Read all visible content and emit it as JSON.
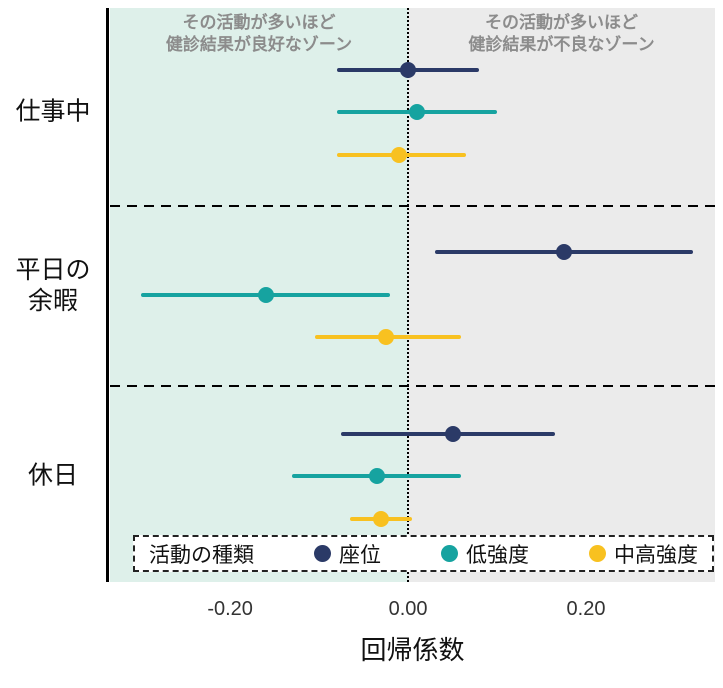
{
  "colors": {
    "sedentary": "#2b3a67",
    "light_intensity": "#16a3a0",
    "moderate_vigorous": "#f8c120",
    "zone_good_bg": "#def0ea",
    "zone_bad_bg": "#ebebeb",
    "zone_label_text": "#8c8c8c"
  },
  "zones": {
    "good_label": "その活動が多いほど\n健診結果が良好なゾーン",
    "bad_label": "その活動が多いほど\n健診結果が不良なゾーン"
  },
  "legend": {
    "title": "活動の種類",
    "items": [
      {
        "label": "座位",
        "color": "#2b3a67"
      },
      {
        "label": "低強度",
        "color": "#16a3a0"
      },
      {
        "label": "中高強度",
        "color": "#f8c120"
      }
    ]
  },
  "chart_data": {
    "type": "scatter",
    "style": "coefficient-forest-plot-with-confidence-intervals",
    "title": "",
    "xlabel": "回帰係数",
    "ylabel": "",
    "xlim": [
      -0.335,
      0.345
    ],
    "xticks": [
      -0.2,
      0,
      0.2
    ],
    "xtick_labels": [
      "-0.20",
      "0.00",
      "0.20"
    ],
    "zero_reference_line": 0,
    "grid": false,
    "legend_position": "bottom-inside",
    "groups": [
      {
        "label": "仕事中",
        "rows": [
          {
            "series": "座位",
            "estimate": 0.0,
            "ci_low": -0.08,
            "ci_high": 0.08
          },
          {
            "series": "低強度",
            "estimate": 0.01,
            "ci_low": -0.08,
            "ci_high": 0.1
          },
          {
            "series": "中高強度",
            "estimate": -0.01,
            "ci_low": -0.08,
            "ci_high": 0.065
          }
        ]
      },
      {
        "label": "平日の\n余暇",
        "rows": [
          {
            "series": "座位",
            "estimate": 0.175,
            "ci_low": 0.03,
            "ci_high": 0.32
          },
          {
            "series": "低強度",
            "estimate": -0.16,
            "ci_low": -0.3,
            "ci_high": -0.02
          },
          {
            "series": "中高強度",
            "estimate": -0.025,
            "ci_low": -0.105,
            "ci_high": 0.06
          }
        ]
      },
      {
        "label": "休日",
        "rows": [
          {
            "series": "座位",
            "estimate": 0.05,
            "ci_low": -0.075,
            "ci_high": 0.165
          },
          {
            "series": "低強度",
            "estimate": -0.035,
            "ci_low": -0.13,
            "ci_high": 0.06
          },
          {
            "series": "中高強度",
            "estimate": -0.03,
            "ci_low": -0.065,
            "ci_high": 0.005
          }
        ]
      }
    ]
  }
}
